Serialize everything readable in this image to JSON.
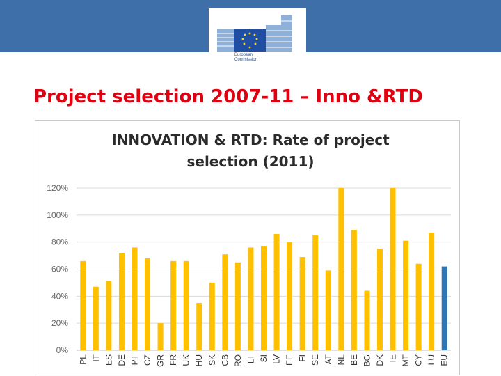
{
  "header": {
    "organisation_line1": "European",
    "organisation_line2": "Commission",
    "logo_icon": "ec-building-flag-logo",
    "banner_color": "#3f6fa8"
  },
  "slide": {
    "title": "Project selection 2007-11 – Inno &RTD",
    "title_color": "#e00010"
  },
  "chart_data": {
    "type": "bar",
    "title_line1": "INNOVATION & RTD: Rate of project",
    "title_line2": "selection (2011)",
    "xlabel": "",
    "ylabel": "",
    "ylim": [
      0,
      120
    ],
    "yticks": [
      0,
      20,
      40,
      60,
      80,
      100,
      120
    ],
    "ytick_labels": [
      "0%",
      "20%",
      "40%",
      "60%",
      "80%",
      "100%",
      "120%"
    ],
    "grid": true,
    "legend": "none",
    "categories": [
      "PL",
      "IT",
      "ES",
      "DE",
      "PT",
      "CZ",
      "GR",
      "FR",
      "UK",
      "HU",
      "SK",
      "CB",
      "RO",
      "LT",
      "SI",
      "LV",
      "EE",
      "FI",
      "SE",
      "AT",
      "NL",
      "BE",
      "BG",
      "DK",
      "IE",
      "MT",
      "CY",
      "LU",
      "EU"
    ],
    "values": [
      66,
      47,
      51,
      72,
      76,
      68,
      20,
      66,
      66,
      35,
      50,
      71,
      65,
      76,
      77,
      86,
      80,
      69,
      85,
      59,
      120,
      89,
      44,
      75,
      120,
      81,
      64,
      87,
      62
    ],
    "bar_color": "#ffc000",
    "highlight_category": "EU",
    "highlight_color": "#2e75b6"
  }
}
